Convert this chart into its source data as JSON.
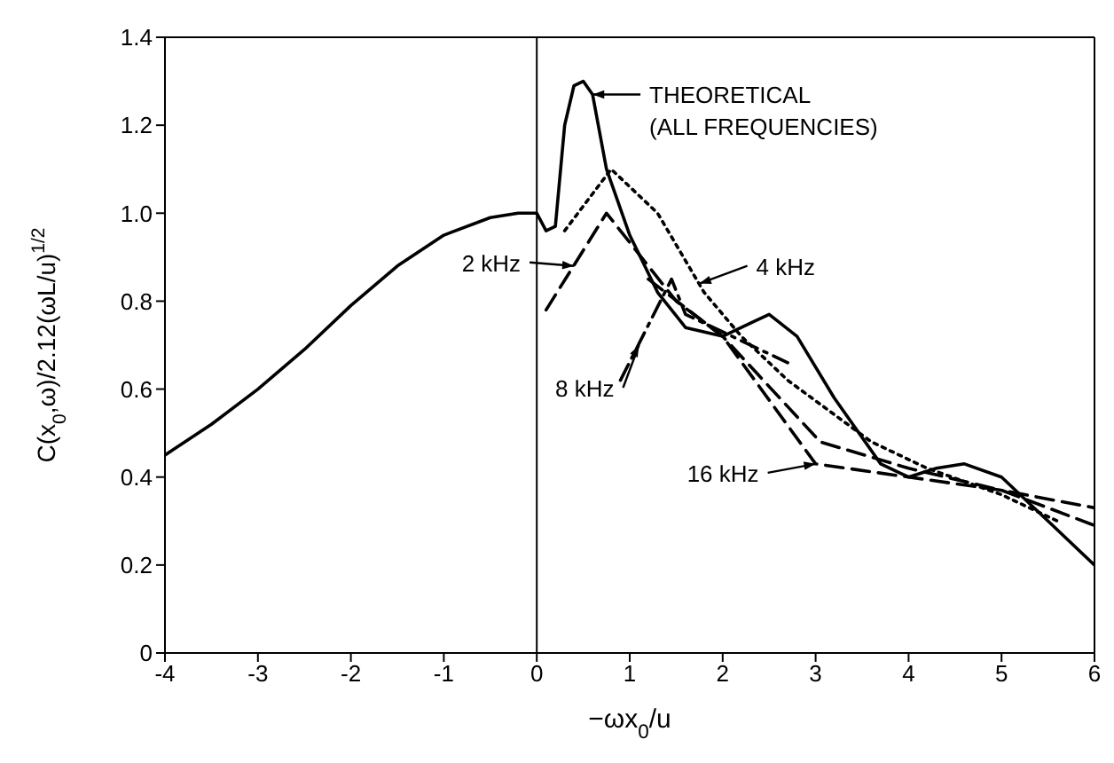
{
  "chart_data": {
    "type": "line",
    "xlabel": "−ωx$_{0}$/u",
    "ylabel": "C(x$_{0}$,ω)/2.12(ωL/u)$^{1/2}$",
    "xlim": [
      -4,
      6
    ],
    "xticks": [
      -4,
      -3,
      -2,
      -1,
      0,
      1,
      2,
      3,
      4,
      5,
      6
    ],
    "ylim": [
      0,
      1.4
    ],
    "yticks": [
      0,
      0.2,
      0.4,
      0.6,
      0.8,
      {
        "value": 1,
        "label": "1.0"
      },
      1.2,
      1.4
    ],
    "grid": false,
    "legend": false,
    "marker": "none",
    "ref_lines": [
      {
        "axis": "x",
        "value": 0,
        "color": "#000000"
      }
    ],
    "series": [
      {
        "color": "#000000",
        "line_style": "solid",
        "x": [
          -4,
          -3.5,
          -3,
          -2.5,
          -2,
          -1.5,
          -1,
          -0.5,
          -0.2,
          0,
          0.1,
          0.2,
          0.3,
          0.4,
          0.5,
          0.6,
          0.75,
          1,
          1.3,
          1.6,
          2,
          2.3,
          2.5,
          2.8,
          3.2,
          3.7,
          4,
          4.3,
          4.6,
          5,
          5.5,
          6
        ],
        "values": [
          0.45,
          0.52,
          0.6,
          0.69,
          0.79,
          0.88,
          0.95,
          0.99,
          1.0,
          1.0,
          0.96,
          0.97,
          1.2,
          1.29,
          1.3,
          1.27,
          1.1,
          0.95,
          0.82,
          0.74,
          0.72,
          0.75,
          0.77,
          0.72,
          0.58,
          0.43,
          0.4,
          0.42,
          0.43,
          0.4,
          0.3,
          0.2
        ]
      },
      {
        "color": "#000000",
        "line_style": "dashed",
        "x": [
          0.1,
          0.75,
          1.5,
          2.0,
          3.0,
          4,
          5,
          6
        ],
        "values": [
          0.78,
          1.0,
          0.8,
          0.72,
          0.43,
          0.4,
          0.37,
          0.33
        ]
      },
      {
        "color": "#000000",
        "line_style": "dotted",
        "x": [
          0.3,
          0.8,
          1.3,
          1.8,
          2.2,
          2.7,
          3.6,
          4.2,
          5.0,
          5.6
        ],
        "values": [
          0.96,
          1.1,
          1.0,
          0.82,
          0.72,
          0.62,
          0.48,
          0.42,
          0.36,
          0.3
        ]
      },
      {
        "color": "#000000",
        "line_style": "dashdot",
        "x": [
          0.9,
          1.45,
          1.6,
          2.7
        ],
        "values": [
          0.62,
          0.85,
          0.77,
          0.66
        ]
      },
      {
        "color": "#000000",
        "line_style": "dashed",
        "x": [
          1.2,
          2.0,
          3.05,
          4,
          5,
          6
        ],
        "values": [
          0.85,
          0.72,
          0.48,
          0.42,
          0.37,
          0.29
        ]
      }
    ],
    "annotations": [
      {
        "text": "THEORETICAL\n(ALL FREQUENCIES)",
        "x": 0.6,
        "y": 1.27
      },
      {
        "text": "4 kHz",
        "x": 1.75,
        "y": 0.84
      },
      {
        "text": "2 kHz",
        "x": 0.4,
        "y": 0.88
      },
      {
        "text": "8 kHz",
        "x": 1.1,
        "y": 0.7
      },
      {
        "text": "16 kHz",
        "x": 3.0,
        "y": 0.43
      }
    ]
  }
}
